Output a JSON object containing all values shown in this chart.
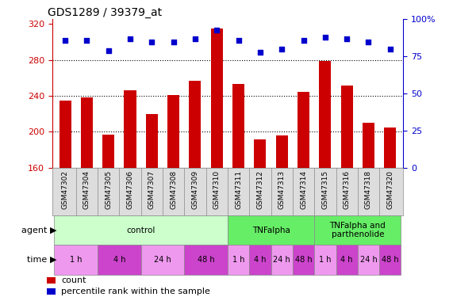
{
  "title": "GDS1289 / 39379_at",
  "samples": [
    "GSM47302",
    "GSM47304",
    "GSM47305",
    "GSM47306",
    "GSM47307",
    "GSM47308",
    "GSM47309",
    "GSM47310",
    "GSM47311",
    "GSM47312",
    "GSM47313",
    "GSM47314",
    "GSM47315",
    "GSM47316",
    "GSM47318",
    "GSM47320"
  ],
  "counts": [
    235,
    238,
    197,
    246,
    220,
    241,
    257,
    315,
    253,
    192,
    196,
    244,
    279,
    251,
    210,
    205
  ],
  "percentiles": [
    86,
    86,
    79,
    87,
    85,
    85,
    87,
    93,
    86,
    78,
    80,
    86,
    88,
    87,
    85,
    80
  ],
  "bar_color": "#cc0000",
  "dot_color": "#0000cc",
  "ylim_left": [
    160,
    325
  ],
  "ylim_right": [
    0,
    100
  ],
  "yticks_left": [
    160,
    200,
    240,
    280,
    320
  ],
  "yticks_right": [
    0,
    25,
    50,
    75,
    100
  ],
  "ytick_labels_right": [
    "0",
    "25",
    "50",
    "75",
    "100%"
  ],
  "grid_values": [
    200,
    240,
    280
  ],
  "agent_groups": [
    {
      "label": "control",
      "start": 0,
      "end": 8,
      "color": "#ccffcc"
    },
    {
      "label": "TNFalpha",
      "start": 8,
      "end": 12,
      "color": "#66ee66"
    },
    {
      "label": "TNFalpha and\nparthenolide",
      "start": 12,
      "end": 16,
      "color": "#66ee66"
    }
  ],
  "time_groups": [
    {
      "label": "1 h",
      "start": 0,
      "end": 2,
      "color": "#ee99ee"
    },
    {
      "label": "4 h",
      "start": 2,
      "end": 4,
      "color": "#cc44cc"
    },
    {
      "label": "24 h",
      "start": 4,
      "end": 6,
      "color": "#ee99ee"
    },
    {
      "label": "48 h",
      "start": 6,
      "end": 8,
      "color": "#cc44cc"
    },
    {
      "label": "1 h",
      "start": 8,
      "end": 9,
      "color": "#ee99ee"
    },
    {
      "label": "4 h",
      "start": 9,
      "end": 10,
      "color": "#cc44cc"
    },
    {
      "label": "24 h",
      "start": 10,
      "end": 11,
      "color": "#ee99ee"
    },
    {
      "label": "48 h",
      "start": 11,
      "end": 12,
      "color": "#cc44cc"
    },
    {
      "label": "1 h",
      "start": 12,
      "end": 13,
      "color": "#ee99ee"
    },
    {
      "label": "4 h",
      "start": 13,
      "end": 14,
      "color": "#cc44cc"
    },
    {
      "label": "24 h",
      "start": 14,
      "end": 15,
      "color": "#ee99ee"
    },
    {
      "label": "48 h",
      "start": 15,
      "end": 16,
      "color": "#cc44cc"
    }
  ],
  "legend_count_label": "count",
  "legend_pct_label": "percentile rank within the sample",
  "left_tick_color": "#cc0000",
  "right_tick_color": "#0000cc",
  "sample_bg_color": "#dddddd",
  "plot_border_color": "#888888"
}
